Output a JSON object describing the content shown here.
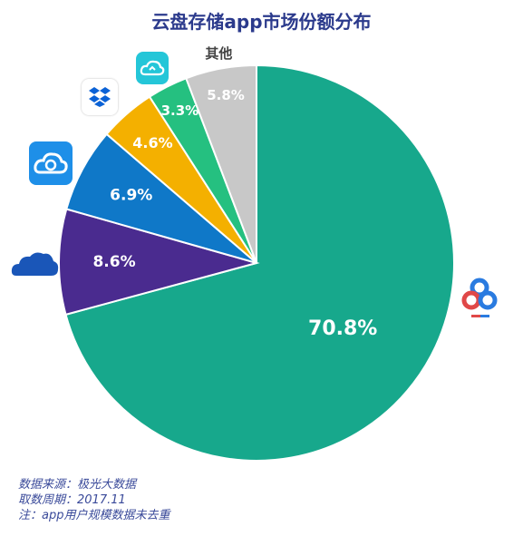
{
  "title": "云盘存储app市场份额分布",
  "chart_data": {
    "type": "pie",
    "title": "云盘存储app市场份额分布",
    "slices": [
      {
        "label": "70.8%",
        "value": 70.8,
        "color": "#17a88c",
        "icon": "baidu-netdisk-logo-icon"
      },
      {
        "label": "8.6%",
        "value": 8.6,
        "color": "#4a2b8f",
        "icon": "onedrive-cloud-icon"
      },
      {
        "label": "6.9%",
        "value": 6.9,
        "color": "#0f78c8",
        "icon": "cloud-spiral-app-icon"
      },
      {
        "label": "4.6%",
        "value": 4.6,
        "color": "#f4b000",
        "icon": "dropbox-icon"
      },
      {
        "label": "3.3%",
        "value": 3.3,
        "color": "#25c080",
        "icon": "cloud-sync-app-icon"
      },
      {
        "label": "5.8%",
        "value": 5.8,
        "color": "#c8c8c8",
        "name": "其他"
      }
    ]
  },
  "footer": {
    "line1": "数据来源：极光大数据",
    "line2": "取数周期：2017.11",
    "line3": "注：app用户规模数据未去重"
  }
}
